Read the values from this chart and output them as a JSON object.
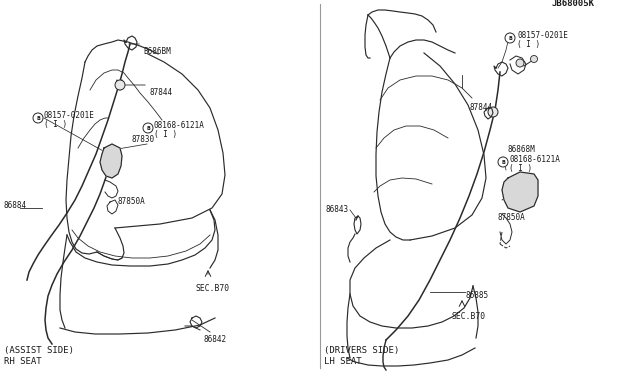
{
  "background_color": "#ffffff",
  "line_color": "#2a2a2a",
  "text_color": "#1a1a1a",
  "diagram_id": "JB68005K",
  "left_title1": "RH SEAT",
  "left_title2": "(ASSIST SIDE)",
  "right_title1": "LH SEAT",
  "right_title2": "(DRIVERS SIDE)",
  "sec_b70_left": "SEC.B70",
  "sec_b70_right": "SEC.B70",
  "font_size_title": 6.5,
  "font_size_label": 5.5,
  "font_size_sec": 5.8,
  "font_size_id": 6.5,
  "divider_color": "#999999"
}
